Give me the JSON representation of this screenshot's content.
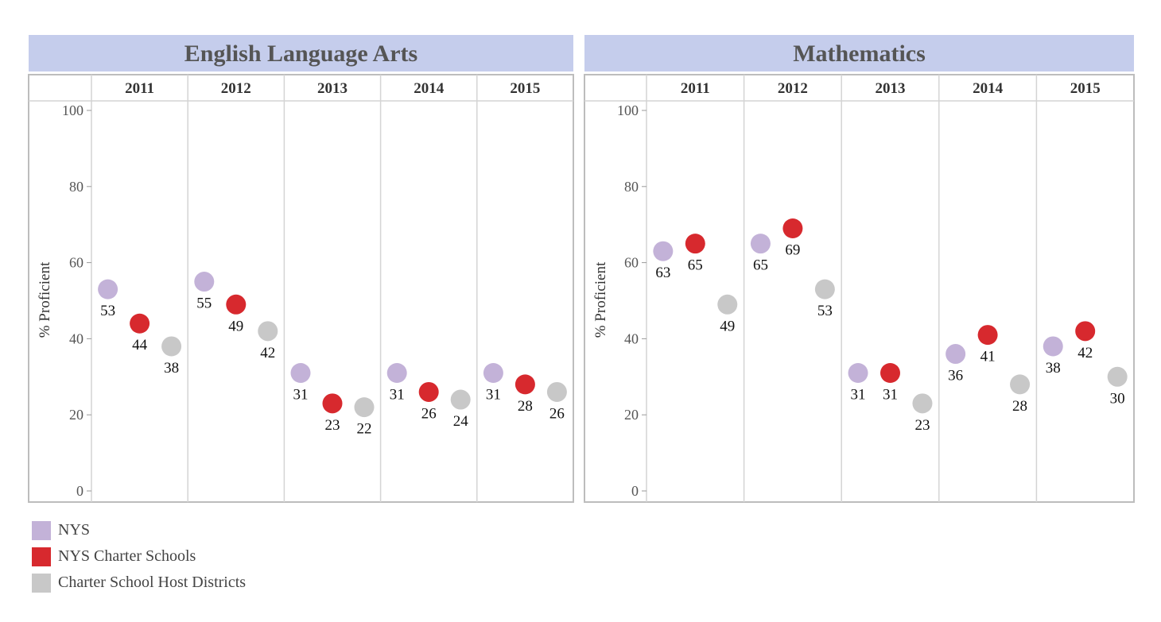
{
  "chart_data": [
    {
      "type": "scatter",
      "title": "English Language Arts",
      "ylabel": "% Proficient",
      "ylim": [
        0,
        100
      ],
      "yticks": [
        0,
        20,
        40,
        60,
        80,
        100
      ],
      "categories": [
        "2011",
        "2012",
        "2013",
        "2014",
        "2015"
      ],
      "series": [
        {
          "name": "NYS",
          "color": "#c3b2d8",
          "values": [
            53,
            55,
            31,
            31,
            31
          ]
        },
        {
          "name": "NYS Charter Schools",
          "color": "#d7292e",
          "values": [
            44,
            49,
            23,
            26,
            28
          ]
        },
        {
          "name": "Charter School Host Districts",
          "color": "#c8c8c8",
          "values": [
            38,
            42,
            22,
            24,
            26
          ]
        }
      ]
    },
    {
      "type": "scatter",
      "title": "Mathematics",
      "ylabel": "% Proficient",
      "ylim": [
        0,
        100
      ],
      "yticks": [
        0,
        20,
        40,
        60,
        80,
        100
      ],
      "categories": [
        "2011",
        "2012",
        "2013",
        "2014",
        "2015"
      ],
      "series": [
        {
          "name": "NYS",
          "color": "#c3b2d8",
          "values": [
            63,
            65,
            31,
            36,
            38
          ]
        },
        {
          "name": "NYS Charter Schools",
          "color": "#d7292e",
          "values": [
            65,
            69,
            31,
            41,
            42
          ]
        },
        {
          "name": "Charter School Host Districts",
          "color": "#c8c8c8",
          "values": [
            49,
            53,
            23,
            28,
            30
          ]
        }
      ]
    }
  ],
  "legend": {
    "items": [
      {
        "label": "NYS",
        "color": "#c3b2d8"
      },
      {
        "label": "NYS Charter Schools",
        "color": "#d7292e"
      },
      {
        "label": "Charter School Host Districts",
        "color": "#c8c8c8"
      }
    ]
  },
  "colors": {
    "header_bg": "#c5cdec",
    "grid": "#d4d4d4",
    "frame": "#bdbdbd"
  }
}
